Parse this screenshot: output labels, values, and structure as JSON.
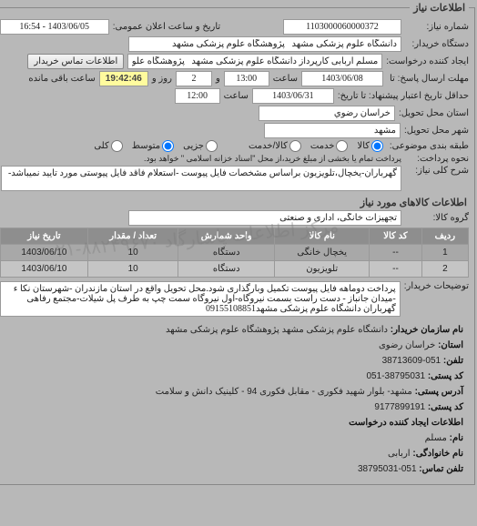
{
  "legend": "اطلاعات نیاز",
  "labels": {
    "requestNo": "شماره نیاز:",
    "announceDate": "تاریخ و ساعت اعلان عمومی:",
    "buyer": "دستگاه خریدار:",
    "creator": "ایجاد کننده درخواست:",
    "sendDeadline": "مهلت ارسال پاسخ: تا",
    "time": "ساعت",
    "and": "و",
    "daysRemain": "روز و",
    "timeRemain": "ساعت باقی مانده",
    "validityDeadline": "حداقل تاریخ اعتبار پیشنهاد: تا تاریخ:",
    "deliveryProvince": "استان محل تحویل:",
    "deliveryCity": "شهر محل تحویل:",
    "grouping": "طبقه بندی موضوعی:",
    "paymentType": "نحوه پرداخت:",
    "needDesc": "شرح کلی نیاز:",
    "goodsGroup": "گروه کالا:",
    "buyerNotes": "توضیحات خریدار:"
  },
  "values": {
    "requestNo": "1103000060000372",
    "announceDate": "1403/06/05 - 16:54",
    "buyer": "دانشگاه علوم پزشکی مشهد   پژوهشگاه علوم پزشکی مشهد",
    "creator": "مسلم اربابی کارپرداز دانشگاه علوم پزشکی مشهد   پژوهشگاه علوم پزشکی م",
    "sendDate": "1403/06/08",
    "sendTime": "13:00",
    "daysRemain": "2",
    "countdown": "19:42:46",
    "validityDate": "1403/06/31",
    "validityTime": "12:00",
    "province": "خراسان رضوي",
    "city": "مشهد",
    "paymentNote": "پرداخت تمام یا بخشی از مبلغ خرید،از محل \"اسناد خزانه اسلامی \" خواهد بود.",
    "needDesc": "گهرباران-یخچال،تلویزیون براساس مشخصات فایل پیوست -استعلام فاقد فایل پیوستی مورد تایید نمیباشد-",
    "goodsGroup": "تجهیزات خانگی، اداری و صنعتی",
    "buyerNotes": "پرداخت دوماهه فایل پیوست تکمیل وبارگذاری شود.محل تحویل واقع در استان مازندران -شهرستان نکا ء -میدان جانباز - دست راست بسمت نیروگاه-اول نیروگاه سمت چپ به طرف پل شیلات-مجتمع رفاهی گهرباران دانشگاه علوم پزشکی مشهد09155108851"
  },
  "buttons": {
    "contactBuyer": "اطلاعات تماس خریدار"
  },
  "radios": {
    "goods": "کالا",
    "service": "خدمت",
    "goodsService": "کالا/خدمت",
    "small": "جزیی",
    "medium": "متوسط",
    "large": "کلی"
  },
  "radioState": {
    "goods": true,
    "service": false,
    "goodsService": false,
    "small": false,
    "medium": true,
    "large": false
  },
  "sectionGoods": "اطلاعات کالاهای مورد نیاز",
  "table": {
    "headers": [
      "ردیف",
      "کد کالا",
      "نام کالا",
      "واحد شمارش",
      "تعداد / مقدار",
      "تاریخ نیاز"
    ],
    "rows": [
      [
        "1",
        "--",
        "یخچال خانگی",
        "دستگاه",
        "10",
        "1403/06/10"
      ],
      [
        "2",
        "--",
        "تلویزیون",
        "دستگاه",
        "10",
        "1403/06/10"
      ]
    ]
  },
  "orgInfo": {
    "orgNameLabel": "نام سازمان خریدار:",
    "orgName": "دانشگاه علوم پزشکی مشهد پژوهشگاه علوم پزشکی مشهد",
    "provinceLabel": "استان:",
    "province": "خراسان رضوی",
    "phoneLabel": "تلفن:",
    "phone": "051-38713609",
    "postalLabel": "کد پستی:",
    "postal": "38795031-051",
    "addressLabel": "آدرس پستی:",
    "address": "مشهد- بلوار شهید فکوری - مقابل فکوری 94 - کلینیک دانش و سلامت",
    "contactPhoneLabel": "کد پستی:",
    "contactPhone": "9177899191",
    "deptLabel": "اطلاعات ایجاد کننده درخواست",
    "nameLabel": "نام:",
    "name": "مسلم",
    "familyLabel": "نام خانوادگی:",
    "family": "اربابی",
    "contactLabel": "تلفن تماس:",
    "contact": "051-38795031"
  },
  "watermark": "مرکز اطلاعات پاسارگاد ۸۸۲۴۹۶۷۰-۰۲۱",
  "colors": {
    "bg": "#b8b8b8",
    "headerBg": "#8e8e8e",
    "countdownBg": "#fffb9e"
  }
}
